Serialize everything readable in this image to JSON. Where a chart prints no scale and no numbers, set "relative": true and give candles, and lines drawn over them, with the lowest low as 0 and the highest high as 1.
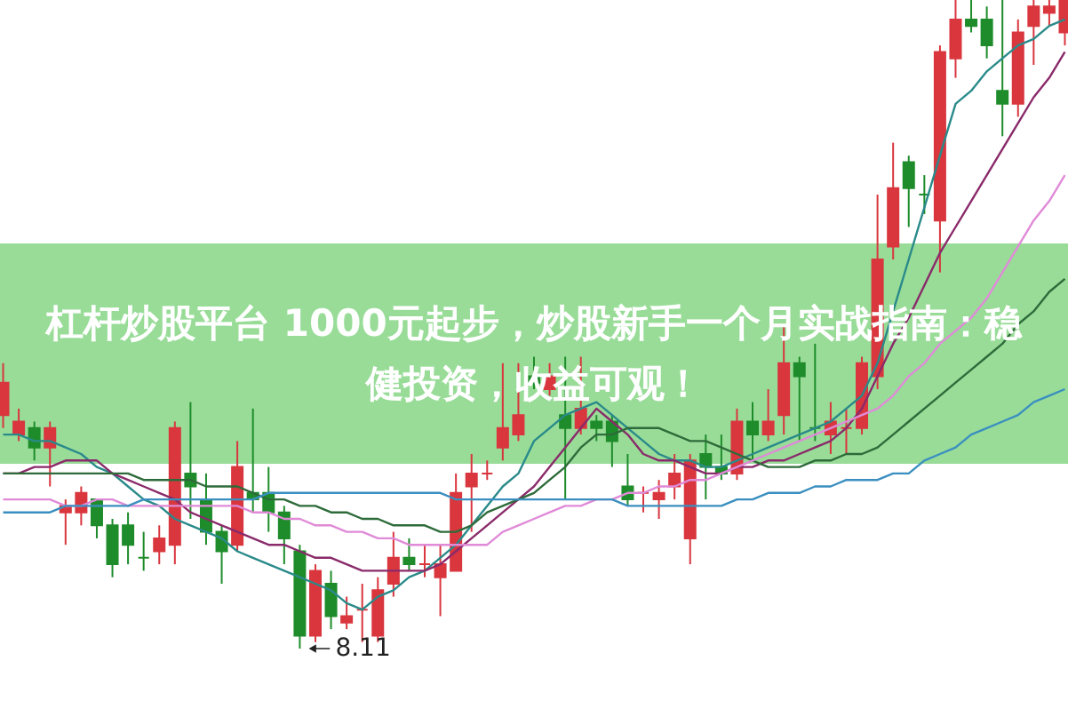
{
  "chart_data": {
    "type": "candlestick",
    "title": "杠杆炒股平台 1000元起步，炒股新手一个月实战指南：稳健投资，收益可观！",
    "relative": true,
    "tick_labels": false,
    "categories": [
      null,
      null,
      null,
      null,
      null,
      null,
      null,
      null,
      null,
      null,
      null,
      null,
      null,
      null,
      null,
      null,
      null,
      null,
      null,
      null,
      null,
      null,
      null,
      null,
      null,
      null,
      null,
      null,
      null,
      null,
      null,
      null,
      null,
      null,
      null,
      null,
      null,
      null,
      null,
      null,
      null,
      null,
      null,
      null,
      null,
      null,
      null,
      null,
      null,
      null,
      null,
      null,
      null,
      null,
      null,
      null,
      null,
      null,
      null,
      null,
      null,
      null,
      null,
      null,
      null,
      null,
      null,
      null,
      null
    ],
    "ohlc": [
      [
        0.36,
        0.44,
        0.34,
        0.41
      ],
      [
        0.33,
        0.37,
        0.32,
        0.35
      ],
      [
        0.34,
        0.35,
        0.29,
        0.31
      ],
      [
        0.31,
        0.35,
        0.25,
        0.34
      ],
      [
        0.21,
        0.23,
        0.16,
        0.22
      ],
      [
        0.21,
        0.25,
        0.19,
        0.24
      ],
      [
        0.23,
        0.23,
        0.17,
        0.19
      ],
      [
        0.19,
        0.2,
        0.11,
        0.13
      ],
      [
        0.19,
        0.21,
        0.13,
        0.16
      ],
      [
        0.14,
        0.18,
        0.12,
        0.14
      ],
      [
        0.15,
        0.19,
        0.13,
        0.17
      ],
      [
        0.16,
        0.35,
        0.13,
        0.34
      ],
      [
        0.27,
        0.38,
        0.2,
        0.25
      ],
      [
        0.23,
        0.27,
        0.16,
        0.18
      ],
      [
        0.18,
        0.19,
        0.1,
        0.15
      ],
      [
        0.16,
        0.32,
        0.15,
        0.28
      ],
      [
        0.24,
        0.37,
        0.21,
        0.23
      ],
      [
        0.24,
        0.28,
        0.18,
        0.21
      ],
      [
        0.21,
        0.22,
        0.13,
        0.17
      ],
      [
        0.15,
        0.16,
        0,
        0.02
      ],
      [
        0.02,
        0.13,
        0.01,
        0.12
      ],
      [
        0.1,
        0.12,
        0.03,
        0.05
      ],
      [
        0.04,
        0.08,
        0.03,
        0.05
      ],
      [
        0.06,
        0.1,
        0.01,
        0.06
      ],
      [
        0.02,
        0.11,
        0.01,
        0.09
      ],
      [
        0.1,
        0.18,
        0.08,
        0.14
      ],
      [
        0.14,
        0.17,
        0.12,
        0.13
      ],
      [
        0.13,
        0.16,
        0.11,
        0.13
      ],
      [
        0.11,
        0.16,
        0.05,
        0.13
      ],
      [
        0.12,
        0.27,
        0.12,
        0.24
      ],
      [
        0.25,
        0.3,
        0.18,
        0.27
      ],
      [
        0.27,
        0.29,
        0.26,
        0.27
      ],
      [
        0.31,
        0.44,
        0.29,
        0.34
      ],
      [
        0.33,
        0.44,
        0.32,
        0.36
      ],
      [
        0.42,
        0.45,
        0.4,
        0.41
      ],
      [
        0.4,
        0.44,
        0.39,
        0.42
      ],
      [
        0.36,
        0.45,
        0.23,
        0.34
      ],
      [
        0.34,
        0.45,
        0.33,
        0.37
      ],
      [
        0.35,
        0.36,
        0.32,
        0.34
      ],
      [
        0.35,
        0.36,
        0.28,
        0.32
      ],
      [
        0.25,
        0.3,
        0.22,
        0.23
      ],
      [
        0.24,
        0.25,
        0.21,
        0.24
      ],
      [
        0.23,
        0.26,
        0.2,
        0.24
      ],
      [
        0.25,
        0.3,
        0.23,
        0.27
      ],
      [
        0.17,
        0.3,
        0.13,
        0.29
      ],
      [
        0.3,
        0.33,
        0.23,
        0.28
      ],
      [
        0.28,
        0.33,
        0.26,
        0.27
      ],
      [
        0.27,
        0.37,
        0.26,
        0.35
      ],
      [
        0.35,
        0.38,
        0.29,
        0.33
      ],
      [
        0.33,
        0.4,
        0.32,
        0.35
      ],
      [
        0.36,
        0.5,
        0.33,
        0.44
      ],
      [
        0.44,
        0.45,
        0.32,
        0.42
      ],
      [
        0.34,
        0.47,
        0.32,
        0.34
      ],
      [
        0.33,
        0.38,
        0.3,
        0.35
      ],
      [
        0.34,
        0.37,
        0.3,
        0.34
      ],
      [
        0.34,
        0.45,
        0.33,
        0.44
      ],
      [
        0.42,
        0.7,
        0.4,
        0.6
      ],
      [
        0.62,
        0.78,
        0.6,
        0.71
      ],
      [
        0.75,
        0.76,
        0.65,
        0.71
      ],
      [
        0.7,
        0.73,
        0.67,
        0.7
      ],
      [
        0.66,
        0.93,
        0.58,
        0.92
      ],
      [
        0.91,
        1,
        0.88,
        0.97
      ],
      [
        0.97,
        1,
        0.95,
        0.96
      ],
      [
        0.97,
        0.99,
        0.91,
        0.93
      ],
      [
        0.86,
        1,
        0.79,
        0.84
      ],
      [
        0.84,
        0.97,
        0.82,
        0.95
      ],
      [
        0.96,
        1,
        0.9,
        0.99
      ],
      [
        0.98,
        1,
        0.96,
        0.99
      ],
      [
        0.95,
        1,
        0.93,
        1
      ]
    ],
    "colors": [
      "#d9363e",
      "#d9363e",
      "#1e8c2a",
      "#d9363e",
      "#d9363e",
      "#d9363e",
      "#1e8c2a",
      "#1e8c2a",
      "#1e8c2a",
      "#1e8c2a",
      "#d9363e",
      "#d9363e",
      "#1e8c2a",
      "#1e8c2a",
      "#1e8c2a",
      "#d9363e",
      "#1e8c2a",
      "#1e8c2a",
      "#1e8c2a",
      "#1e8c2a",
      "#d9363e",
      "#1e8c2a",
      "#d9363e",
      "#d9363e",
      "#d9363e",
      "#d9363e",
      "#1e8c2a",
      "#d9363e",
      "#d9363e",
      "#d9363e",
      "#d9363e",
      "#d9363e",
      "#d9363e",
      "#d9363e",
      "#1e8c2a",
      "#d9363e",
      "#1e8c2a",
      "#d9363e",
      "#1e8c2a",
      "#1e8c2a",
      "#1e8c2a",
      "#d9363e",
      "#d9363e",
      "#d9363e",
      "#d9363e",
      "#1e8c2a",
      "#1e8c2a",
      "#d9363e",
      "#1e8c2a",
      "#d9363e",
      "#d9363e",
      "#1e8c2a",
      "#1e8c2a",
      "#d9363e",
      "#d9363e",
      "#d9363e",
      "#d9363e",
      "#d9363e",
      "#1e8c2a",
      "#1e8c2a",
      "#d9363e",
      "#d9363e",
      "#1e8c2a",
      "#1e8c2a",
      "#1e8c2a",
      "#d9363e",
      "#d9363e",
      "#d9363e",
      "#d9363e"
    ],
    "series": [
      {
        "type": "line",
        "color": "#2a8a8a",
        "values": [
          0.33,
          0.33,
          0.32,
          0.32,
          0.31,
          0.3,
          0.28,
          0.27,
          0.25,
          0.23,
          0.22,
          0.2,
          0.19,
          0.18,
          0.17,
          0.15,
          0.14,
          0.13,
          0.12,
          0.11,
          0.1,
          0.09,
          0.07,
          0.06,
          0.08,
          0.09,
          0.11,
          0.12,
          0.14,
          0.16,
          0.19,
          0.22,
          0.25,
          0.27,
          0.32,
          0.34,
          0.36,
          0.37,
          0.38,
          0.36,
          0.34,
          0.32,
          0.3,
          0.29,
          0.29,
          0.28,
          0.28,
          0.29,
          0.3,
          0.31,
          0.32,
          0.33,
          0.34,
          0.35,
          0.37,
          0.39,
          0.44,
          0.52,
          0.6,
          0.68,
          0.76,
          0.84,
          0.86,
          0.89,
          0.91,
          0.93,
          0.94,
          0.96,
          0.97
        ]
      },
      {
        "type": "line",
        "color": "#8a2a6a",
        "values": [
          0.27,
          0.27,
          0.28,
          0.28,
          0.29,
          0.29,
          0.29,
          0.27,
          0.26,
          0.25,
          0.24,
          0.23,
          0.21,
          0.2,
          0.19,
          0.18,
          0.17,
          0.16,
          0.16,
          0.15,
          0.14,
          0.14,
          0.13,
          0.12,
          0.12,
          0.12,
          0.12,
          0.12,
          0.13,
          0.15,
          0.17,
          0.19,
          0.21,
          0.23,
          0.25,
          0.28,
          0.31,
          0.34,
          0.37,
          0.35,
          0.33,
          0.3,
          0.29,
          0.29,
          0.28,
          0.27,
          0.27,
          0.28,
          0.28,
          0.29,
          0.29,
          0.3,
          0.31,
          0.32,
          0.34,
          0.37,
          0.42,
          0.47,
          0.51,
          0.56,
          0.61,
          0.65,
          0.69,
          0.73,
          0.77,
          0.81,
          0.85,
          0.88,
          0.92
        ]
      },
      {
        "type": "line",
        "color": "#2e6b3a",
        "values": [
          0.27,
          0.27,
          0.27,
          0.27,
          0.27,
          0.27,
          0.27,
          0.27,
          0.27,
          0.26,
          0.26,
          0.26,
          0.26,
          0.25,
          0.25,
          0.25,
          0.24,
          0.23,
          0.23,
          0.22,
          0.22,
          0.21,
          0.21,
          0.2,
          0.2,
          0.19,
          0.19,
          0.19,
          0.18,
          0.18,
          0.19,
          0.21,
          0.22,
          0.23,
          0.24,
          0.26,
          0.28,
          0.31,
          0.33,
          0.33,
          0.34,
          0.34,
          0.34,
          0.33,
          0.32,
          0.32,
          0.31,
          0.3,
          0.29,
          0.28,
          0.28,
          0.28,
          0.29,
          0.29,
          0.3,
          0.3,
          0.31,
          0.33,
          0.35,
          0.37,
          0.39,
          0.41,
          0.43,
          0.45,
          0.47,
          0.5,
          0.52,
          0.55,
          0.57
        ]
      },
      {
        "type": "line",
        "color": "#e08ad8",
        "values": [
          0.23,
          0.23,
          0.23,
          0.23,
          0.22,
          0.22,
          0.23,
          0.23,
          0.22,
          0.22,
          0.22,
          0.22,
          0.22,
          0.22,
          0.22,
          0.22,
          0.21,
          0.21,
          0.2,
          0.2,
          0.19,
          0.19,
          0.18,
          0.18,
          0.17,
          0.17,
          0.16,
          0.16,
          0.16,
          0.16,
          0.16,
          0.16,
          0.18,
          0.19,
          0.2,
          0.21,
          0.22,
          0.22,
          0.23,
          0.23,
          0.24,
          0.24,
          0.25,
          0.25,
          0.26,
          0.26,
          0.27,
          0.28,
          0.29,
          0.3,
          0.31,
          0.32,
          0.33,
          0.34,
          0.35,
          0.36,
          0.37,
          0.39,
          0.42,
          0.44,
          0.47,
          0.49,
          0.51,
          0.54,
          0.58,
          0.62,
          0.66,
          0.69,
          0.73
        ]
      },
      {
        "type": "line",
        "color": "#3a8fc0",
        "values": [
          0.21,
          0.21,
          0.21,
          0.21,
          0.22,
          0.22,
          0.22,
          0.22,
          0.22,
          0.23,
          0.23,
          0.23,
          0.23,
          0.23,
          0.23,
          0.23,
          0.23,
          0.24,
          0.24,
          0.24,
          0.24,
          0.24,
          0.24,
          0.24,
          0.24,
          0.24,
          0.24,
          0.24,
          0.24,
          0.23,
          0.23,
          0.23,
          0.23,
          0.23,
          0.23,
          0.23,
          0.23,
          0.23,
          0.23,
          0.23,
          0.22,
          0.22,
          0.22,
          0.22,
          0.22,
          0.22,
          0.22,
          0.23,
          0.23,
          0.24,
          0.24,
          0.24,
          0.25,
          0.25,
          0.26,
          0.26,
          0.26,
          0.27,
          0.27,
          0.29,
          0.3,
          0.31,
          0.33,
          0.34,
          0.35,
          0.36,
          0.38,
          0.39,
          0.4
        ]
      }
    ],
    "annotations": [
      "8.11"
    ]
  }
}
